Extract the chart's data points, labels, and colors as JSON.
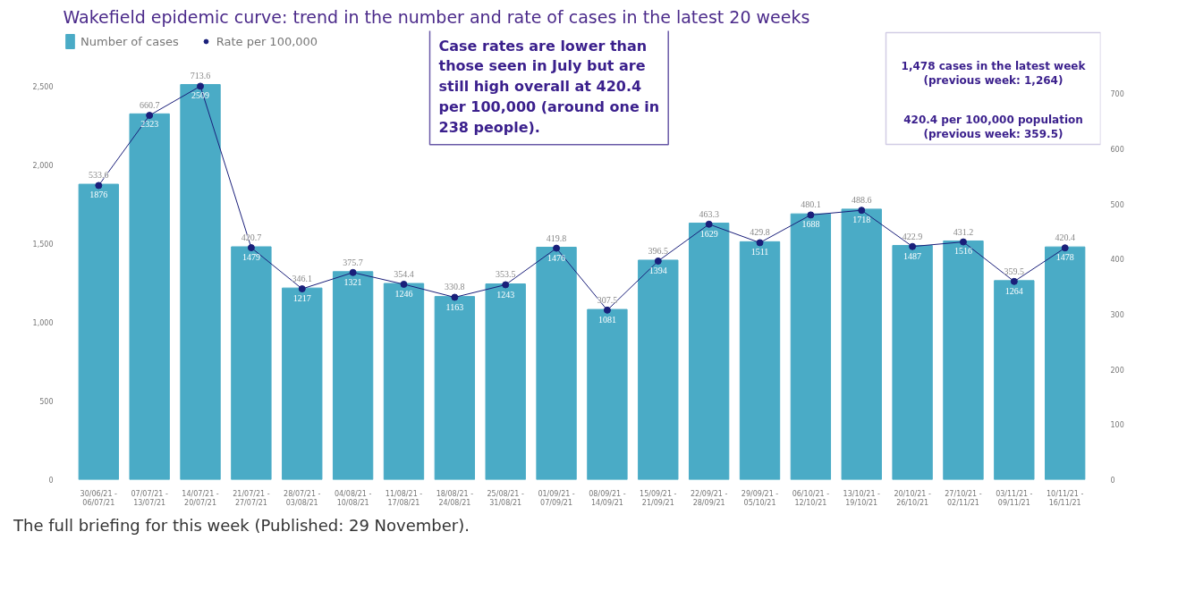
{
  "chart_data": {
    "type": "bar",
    "title": "Wakefield epidemic curve: trend in the number and rate of cases in the latest 20 weeks",
    "categories": [
      "30/06/21 - 06/07/21",
      "07/07/21 - 13/07/21",
      "14/07/21 - 20/07/21",
      "21/07/21 - 27/07/21",
      "28/07/21 - 03/08/21",
      "04/08/21 - 10/08/21",
      "11/08/21 - 17/08/21",
      "18/08/21 - 24/08/21",
      "25/08/21 - 31/08/21",
      "01/09/21 - 07/09/21",
      "08/09/21 - 14/09/21",
      "15/09/21 - 21/09/21",
      "22/09/21 - 28/09/21",
      "29/09/21 - 05/10/21",
      "06/10/21 - 12/10/21",
      "13/10/21 - 19/10/21",
      "20/10/21 - 26/10/21",
      "27/10/21 - 02/11/21",
      "03/11/21 - 09/11/21",
      "10/11/21 - 16/11/21"
    ],
    "series": [
      {
        "name": "Number of cases",
        "color": "#4aabc6",
        "values": [
          1876,
          2323,
          2509,
          1479,
          1217,
          1321,
          1246,
          1163,
          1243,
          1476,
          1081,
          1394,
          1629,
          1511,
          1688,
          1718,
          1487,
          1516,
          1264,
          1478
        ]
      },
      {
        "name": "Rate per 100,000",
        "type": "line",
        "axis": "y2",
        "color": "#1a1f7a",
        "values": [
          533.6,
          660.7,
          713.6,
          420.7,
          346.1,
          375.7,
          354.4,
          330.8,
          353.5,
          419.8,
          307.5,
          396.5,
          463.3,
          429.8,
          480.1,
          488.6,
          422.9,
          431.2,
          359.5,
          420.4
        ]
      }
    ],
    "ylim": [
      0,
      2850
    ],
    "yticks": [
      0,
      500,
      {
        "value": 1000,
        "label": "1,000"
      },
      {
        "value": 1500,
        "label": "1,500"
      },
      {
        "value": 2000,
        "label": "2,000"
      },
      {
        "value": 2500,
        "label": "2,500"
      }
    ],
    "y2lim": [
      0,
      814
    ],
    "y2ticks": [
      0,
      100,
      200,
      300,
      400,
      500,
      600,
      700
    ],
    "marker": "circle",
    "data_labels": true,
    "grid": false,
    "legend": "top left",
    "annotations": [
      "Case rates are lower than those seen in July but are still high overall at 420.4 per 100,000 (around one in 238 people).",
      "1,478 cases in the latest week\n(previous week: 1,264)",
      "420.4 per 100,000 population\n(previous week: 359.5)",
      "The full briefing for this week (Published: 29 November)."
    ]
  }
}
